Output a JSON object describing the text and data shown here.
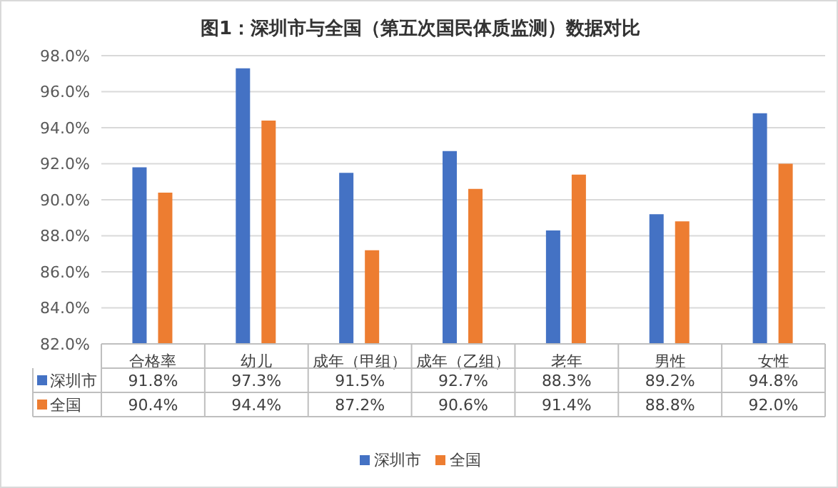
{
  "chart_data": {
    "type": "bar",
    "title": "图1：深圳市与全国（第五次国民体质监测）数据对比",
    "categories": [
      "合格率",
      "幼儿",
      "成年（甲组）",
      "成年（乙组）",
      "老年",
      "男性",
      "女性"
    ],
    "series": [
      {
        "name": "深圳市",
        "color": "#4472c4",
        "values": [
          91.8,
          97.3,
          91.5,
          92.7,
          88.3,
          89.2,
          94.8
        ],
        "value_labels": [
          "91.8%",
          "97.3%",
          "91.5%",
          "92.7%",
          "88.3%",
          "89.2%",
          "94.8%"
        ]
      },
      {
        "name": "全国",
        "color": "#ed7d31",
        "values": [
          90.4,
          94.4,
          87.2,
          90.6,
          91.4,
          88.8,
          92.0
        ],
        "value_labels": [
          "90.4%",
          "94.4%",
          "87.2%",
          "90.6%",
          "91.4%",
          "88.8%",
          "92.0%"
        ]
      }
    ],
    "ylim": [
      82,
      98
    ],
    "yticks": [
      {
        "value": 82,
        "label": "82.0%"
      },
      {
        "value": 84,
        "label": "84.0%"
      },
      {
        "value": 86,
        "label": "86.0%"
      },
      {
        "value": 88,
        "label": "88.0%"
      },
      {
        "value": 90,
        "label": "90.0%"
      },
      {
        "value": 92,
        "label": "92.0%"
      },
      {
        "value": 94,
        "label": "94.0%"
      },
      {
        "value": 96,
        "label": "96.0%"
      },
      {
        "value": 98,
        "label": "98.0%"
      }
    ],
    "grid": "y",
    "legend": "bottom"
  }
}
